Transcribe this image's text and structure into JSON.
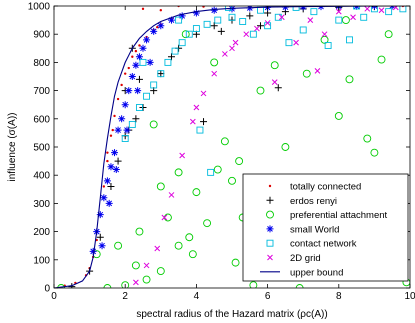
{
  "chart_data": {
    "type": "scatter",
    "title": "",
    "xlabel": "spectral radius of the Hazard matrix (ρc(A))",
    "ylabel": "influence (σ(A))",
    "xlim": [
      0,
      10
    ],
    "ylim": [
      0,
      1000
    ],
    "x_ticks": [
      "0",
      "2",
      "4",
      "6",
      "8",
      "10"
    ],
    "y_ticks": [
      "0",
      "100",
      "200",
      "300",
      "400",
      "500",
      "600",
      "700",
      "800",
      "900",
      "1000"
    ],
    "grid": false,
    "legend_position": "lower-right",
    "series": [
      {
        "name": "totally connected",
        "marker": "dot",
        "color": "#dd0000",
        "points": [
          [
            0.3,
            8
          ],
          [
            0.6,
            18
          ],
          [
            0.9,
            45
          ],
          [
            1.0,
            70
          ],
          [
            1.1,
            110
          ],
          [
            1.2,
            170
          ],
          [
            1.3,
            260
          ],
          [
            1.4,
            360
          ],
          [
            1.5,
            450
          ],
          [
            1.6,
            540
          ],
          [
            1.7,
            610
          ],
          [
            1.8,
            670
          ],
          [
            1.9,
            720
          ],
          [
            2.0,
            760
          ],
          [
            2.2,
            820
          ],
          [
            2.4,
            860
          ],
          [
            2.6,
            890
          ],
          [
            2.8,
            915
          ],
          [
            3.0,
            935
          ],
          [
            3.3,
            955
          ],
          [
            3.6,
            968
          ],
          [
            4.0,
            978
          ],
          [
            4.5,
            986
          ],
          [
            5.0,
            991
          ],
          [
            5.5,
            994
          ],
          [
            6.0,
            996
          ],
          [
            7.0,
            998
          ],
          [
            8.0,
            999
          ],
          [
            9.0,
            999
          ],
          [
            9.8,
            1000
          ],
          [
            2.5,
            990
          ],
          [
            3.0,
            985
          ],
          [
            3.5,
            1000
          ],
          [
            4.2,
            998
          ],
          [
            1.5,
            480
          ],
          [
            1.65,
            560
          ],
          [
            2.1,
            780
          ],
          [
            2.3,
            840
          ],
          [
            2.9,
            925
          ]
        ]
      },
      {
        "name": "erdos renyi",
        "marker": "plus",
        "color": "#000000",
        "points": [
          [
            0.5,
            5
          ],
          [
            1.0,
            60
          ],
          [
            1.3,
            180
          ],
          [
            1.6,
            360
          ],
          [
            1.8,
            450
          ],
          [
            2.0,
            540
          ],
          [
            2.1,
            560
          ],
          [
            2.3,
            600
          ],
          [
            2.5,
            640
          ],
          [
            2.8,
            700
          ],
          [
            3.0,
            760
          ],
          [
            3.5,
            850
          ],
          [
            4.0,
            900
          ],
          [
            4.5,
            930
          ],
          [
            5.0,
            950
          ],
          [
            5.5,
            965
          ],
          [
            6.0,
            975
          ],
          [
            6.5,
            980
          ],
          [
            7.0,
            990
          ],
          [
            8.0,
            995
          ],
          [
            9.0,
            998
          ],
          [
            2.4,
            740
          ],
          [
            3.3,
            820
          ],
          [
            4.7,
            910
          ],
          [
            5.8,
            930
          ],
          [
            6.3,
            710
          ],
          [
            4.2,
            590
          ],
          [
            2.0,
            700
          ],
          [
            2.2,
            850
          ]
        ]
      },
      {
        "name": "preferential attachment",
        "marker": "circle",
        "color": "#00cc00",
        "points": [
          [
            0.2,
            0
          ],
          [
            1.5,
            0
          ],
          [
            2.0,
            10
          ],
          [
            2.6,
            30
          ],
          [
            2.3,
            80
          ],
          [
            3.0,
            60
          ],
          [
            3.5,
            150
          ],
          [
            3.8,
            180
          ],
          [
            4.3,
            230
          ],
          [
            4.0,
            340
          ],
          [
            3.0,
            360
          ],
          [
            3.5,
            410
          ],
          [
            4.6,
            420
          ],
          [
            5.0,
            380
          ],
          [
            5.3,
            250
          ],
          [
            5.2,
            450
          ],
          [
            6.0,
            210
          ],
          [
            6.3,
            120
          ],
          [
            6.7,
            300
          ],
          [
            6.5,
            500
          ],
          [
            7.0,
            390
          ],
          [
            7.3,
            160
          ],
          [
            7.8,
            250
          ],
          [
            8.0,
            610
          ],
          [
            8.3,
            740
          ],
          [
            8.6,
            350
          ],
          [
            8.8,
            530
          ],
          [
            9.0,
            480
          ],
          [
            9.2,
            810
          ],
          [
            9.5,
            300
          ],
          [
            9.6,
            200
          ],
          [
            9.9,
            20
          ],
          [
            5.6,
            10
          ],
          [
            6.9,
            0
          ],
          [
            4.8,
            520
          ],
          [
            5.8,
            700
          ],
          [
            6.2,
            790
          ],
          [
            7.1,
            760
          ],
          [
            7.6,
            880
          ],
          [
            8.2,
            950
          ],
          [
            9.4,
            900
          ],
          [
            3.2,
            250
          ],
          [
            3.7,
            900
          ],
          [
            4.5,
            800
          ],
          [
            2.8,
            580
          ],
          [
            2.4,
            200
          ],
          [
            1.8,
            150
          ],
          [
            1.2,
            120
          ],
          [
            3.9,
            120
          ],
          [
            5.1,
            90
          ]
        ]
      },
      {
        "name": "small World",
        "marker": "asterisk",
        "color": "#0000ee",
        "points": [
          [
            1.1,
            130
          ],
          [
            1.2,
            200
          ],
          [
            1.3,
            260
          ],
          [
            1.4,
            320
          ],
          [
            1.5,
            380
          ],
          [
            1.6,
            430
          ],
          [
            1.7,
            480
          ],
          [
            1.8,
            560
          ],
          [
            1.9,
            600
          ],
          [
            2.0,
            650
          ],
          [
            2.1,
            700
          ],
          [
            2.2,
            750
          ],
          [
            2.3,
            790
          ],
          [
            2.4,
            820
          ],
          [
            2.5,
            850
          ],
          [
            2.6,
            880
          ],
          [
            2.8,
            910
          ],
          [
            3.0,
            930
          ],
          [
            3.3,
            950
          ],
          [
            3.6,
            965
          ],
          [
            4.0,
            975
          ],
          [
            4.5,
            985
          ],
          [
            5.0,
            990
          ],
          [
            5.5,
            993
          ],
          [
            6.0,
            995
          ],
          [
            6.5,
            996
          ],
          [
            7.0,
            997
          ],
          [
            7.5,
            998
          ],
          [
            8.0,
            999
          ],
          [
            8.5,
            999
          ],
          [
            9.0,
            1000
          ],
          [
            9.5,
            1000
          ],
          [
            1.35,
            150
          ],
          [
            1.55,
            300
          ],
          [
            1.75,
            420
          ],
          [
            2.05,
            560
          ],
          [
            2.35,
            700
          ],
          [
            2.7,
            800
          ]
        ]
      },
      {
        "name": "contact network",
        "marker": "square",
        "color": "#00bbdd",
        "points": [
          [
            2.0,
            530
          ],
          [
            2.2,
            580
          ],
          [
            2.4,
            640
          ],
          [
            2.6,
            680
          ],
          [
            2.8,
            720
          ],
          [
            3.0,
            760
          ],
          [
            3.2,
            800
          ],
          [
            3.4,
            840
          ],
          [
            3.6,
            870
          ],
          [
            3.8,
            900
          ],
          [
            4.0,
            920
          ],
          [
            4.3,
            935
          ],
          [
            4.6,
            950
          ],
          [
            5.0,
            960
          ],
          [
            5.3,
            945
          ],
          [
            5.6,
            900
          ],
          [
            6.0,
            930
          ],
          [
            6.3,
            960
          ],
          [
            6.6,
            870
          ],
          [
            7.0,
            915
          ],
          [
            7.3,
            980
          ],
          [
            7.7,
            860
          ],
          [
            8.0,
            950
          ],
          [
            8.3,
            880
          ],
          [
            8.7,
            960
          ],
          [
            9.0,
            990
          ],
          [
            9.4,
            980
          ],
          [
            9.8,
            990
          ],
          [
            4.1,
            560
          ],
          [
            4.4,
            410
          ],
          [
            2.5,
            800
          ],
          [
            3.5,
            950
          ],
          [
            5.8,
            985
          ],
          [
            6.8,
            995
          ],
          [
            4.9,
            995
          ],
          [
            8.5,
            1000
          ]
        ]
      },
      {
        "name": "2D grid",
        "marker": "x",
        "color": "#dd00dd",
        "points": [
          [
            2.3,
            20
          ],
          [
            2.6,
            80
          ],
          [
            2.9,
            140
          ],
          [
            3.3,
            330
          ],
          [
            3.6,
            470
          ],
          [
            3.9,
            590
          ],
          [
            4.2,
            690
          ],
          [
            4.5,
            760
          ],
          [
            4.8,
            830
          ],
          [
            5.1,
            870
          ],
          [
            5.4,
            900
          ],
          [
            5.7,
            920
          ],
          [
            6.0,
            940
          ],
          [
            6.4,
            960
          ],
          [
            6.8,
            870
          ],
          [
            7.2,
            950
          ],
          [
            7.6,
            900
          ],
          [
            8.0,
            980
          ],
          [
            8.4,
            960
          ],
          [
            8.8,
            990
          ],
          [
            9.2,
            985
          ],
          [
            9.6,
            995
          ],
          [
            3.1,
            250
          ],
          [
            4.0,
            640
          ],
          [
            5.0,
            850
          ],
          [
            6.2,
            730
          ],
          [
            7.4,
            770
          ]
        ]
      },
      {
        "name": "upper bound",
        "marker": "line",
        "color": "#000088",
        "points": [
          [
            0,
            0
          ],
          [
            0.5,
            8
          ],
          [
            0.8,
            25
          ],
          [
            1.0,
            60
          ],
          [
            1.1,
            110
          ],
          [
            1.2,
            200
          ],
          [
            1.3,
            320
          ],
          [
            1.4,
            440
          ],
          [
            1.5,
            530
          ],
          [
            1.6,
            610
          ],
          [
            1.7,
            680
          ],
          [
            1.8,
            730
          ],
          [
            2.0,
            800
          ],
          [
            2.2,
            850
          ],
          [
            2.4,
            885
          ],
          [
            2.6,
            910
          ],
          [
            2.8,
            930
          ],
          [
            3.0,
            945
          ],
          [
            3.5,
            968
          ],
          [
            4.0,
            980
          ],
          [
            4.5,
            988
          ],
          [
            5.0,
            992
          ],
          [
            6.0,
            996
          ],
          [
            7.0,
            998
          ],
          [
            8.0,
            999
          ],
          [
            9.0,
            1000
          ],
          [
            10.0,
            1000
          ]
        ]
      }
    ]
  }
}
